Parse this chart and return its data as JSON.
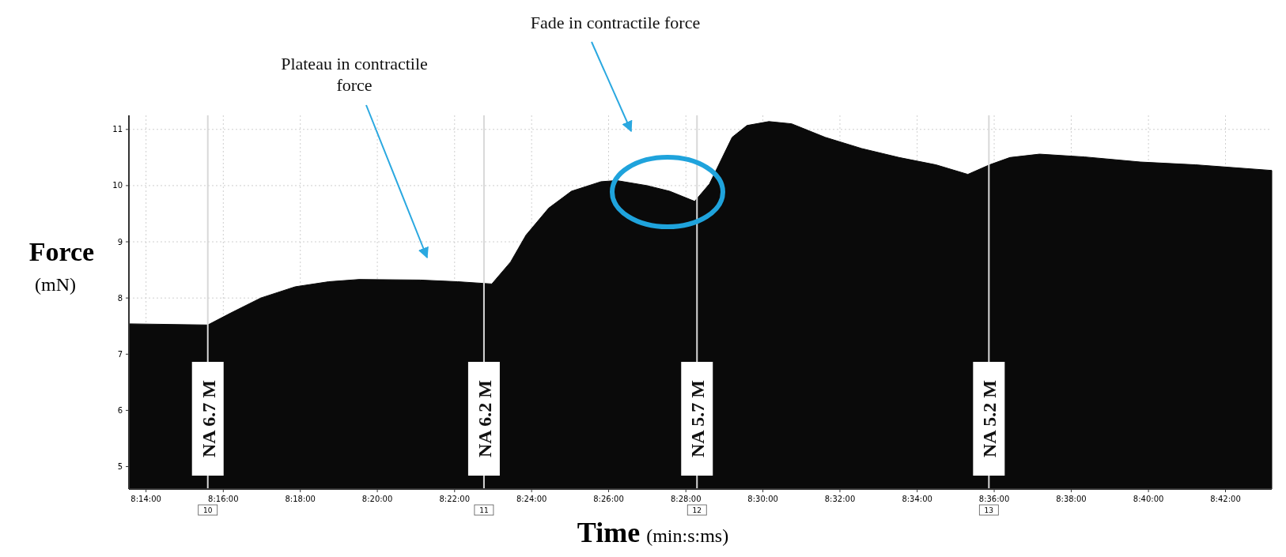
{
  "chart_data": {
    "type": "area",
    "xlabel": "Time (min:s:ms)",
    "ylabel": "Force (mN)",
    "x": [
      8.2259,
      8.26,
      8.2698,
      8.2829,
      8.2978,
      8.3123,
      8.3254,
      8.3518,
      8.368,
      8.3828,
      8.3909,
      8.3976,
      8.4074,
      8.4172,
      8.43,
      8.4368,
      8.4499,
      8.4597,
      8.4705,
      8.4769,
      8.4867,
      8.4931,
      8.5026,
      8.5124,
      8.5269,
      8.5427,
      8.5589,
      8.5748,
      8.5886,
      8.598,
      8.6068,
      8.6196,
      8.6392,
      8.6632,
      8.6871,
      8.72
    ],
    "series": [
      {
        "color": "#0a0a0a",
        "values": [
          7.54,
          7.52,
          7.73,
          8.0,
          8.2,
          8.29,
          8.33,
          8.32,
          8.29,
          8.25,
          8.64,
          9.12,
          9.6,
          9.9,
          10.07,
          10.09,
          10.0,
          9.9,
          9.72,
          10.03,
          10.86,
          11.07,
          11.14,
          11.1,
          10.86,
          10.66,
          10.5,
          10.37,
          10.2,
          10.37,
          10.5,
          10.56,
          10.51,
          10.42,
          10.37,
          10.27
        ]
      }
    ],
    "xlim": [
      8.2259,
      8.72
    ],
    "ylim": [
      4.6,
      11.25
    ],
    "xticks": [
      {
        "value": 8.2333,
        "label": "8:14:00"
      },
      {
        "value": 8.2667,
        "label": "8:16:00"
      },
      {
        "value": 8.3,
        "label": "8:18:00"
      },
      {
        "value": 8.3333,
        "label": "8:20:00"
      },
      {
        "value": 8.3667,
        "label": "8:22:00"
      },
      {
        "value": 8.4,
        "label": "8:24:00"
      },
      {
        "value": 8.4333,
        "label": "8:26:00"
      },
      {
        "value": 8.4667,
        "label": "8:28:00"
      },
      {
        "value": 8.5,
        "label": "8:30:00"
      },
      {
        "value": 8.5333,
        "label": "8:32:00"
      },
      {
        "value": 8.5667,
        "label": "8:34:00"
      },
      {
        "value": 8.6,
        "label": "8:36:00"
      },
      {
        "value": 8.6333,
        "label": "8:38:00"
      },
      {
        "value": 8.6667,
        "label": "8:40:00"
      },
      {
        "value": 8.7,
        "label": "8:42:00"
      }
    ],
    "yticks": [
      5,
      6,
      7,
      8,
      9,
      10,
      11
    ],
    "grid": true,
    "ref_lines": [
      {
        "axis": "x",
        "value": 8.26,
        "label": "NA 6.7 M",
        "color": "#d8d8d8"
      },
      {
        "axis": "x",
        "value": 8.3794,
        "label": "NA 6.2 M",
        "color": "#d8d8d8"
      },
      {
        "axis": "x",
        "value": 8.4715,
        "label": "NA 5.7 M",
        "color": "#d8d8d8"
      },
      {
        "axis": "x",
        "value": 8.5977,
        "label": "NA 5.2 M",
        "color": "#d8d8d8"
      }
    ],
    "annotations": [
      "Plateau in contractile force",
      "Fade in contractile force",
      "10",
      "11",
      "12",
      "13"
    ]
  }
}
